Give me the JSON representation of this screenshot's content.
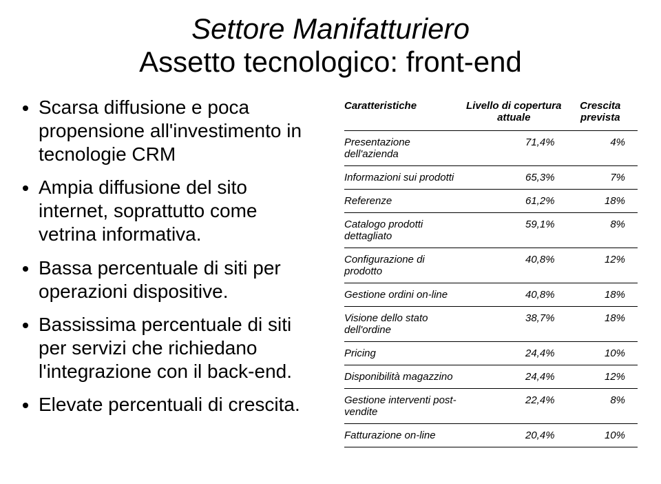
{
  "title": {
    "line1": "Settore Manifatturiero",
    "line2": "Assetto tecnologico: front-end"
  },
  "bullets": [
    "Scarsa diffusione e poca propensione all'investimento in tecnologie CRM",
    "Ampia diffusione del sito internet, soprattutto come vetrina informativa.",
    "Bassa percentuale di siti per operazioni dispositive.",
    "Bassissima percentuale di siti per servizi che richiedano l'integrazione con il back-end.",
    "Elevate percentuali di crescita."
  ],
  "table": {
    "headers": {
      "c0": "Caratteristiche",
      "c1": "Livello di copertura attuale",
      "c2": "Crescita prevista"
    },
    "rows": [
      {
        "label": "Presentazione dell'azienda",
        "v1": "71,4%",
        "v2": "4%"
      },
      {
        "label": "Informazioni sui prodotti",
        "v1": "65,3%",
        "v2": "7%"
      },
      {
        "label": "Referenze",
        "v1": "61,2%",
        "v2": "18%"
      },
      {
        "label": "Catalogo prodotti dettagliato",
        "v1": "59,1%",
        "v2": "8%"
      },
      {
        "label": "Configurazione di prodotto",
        "v1": "40,8%",
        "v2": "12%"
      },
      {
        "label": "Gestione ordini on-line",
        "v1": "40,8%",
        "v2": "18%"
      },
      {
        "label": "Visione dello stato dell'ordine",
        "v1": "38,7%",
        "v2": "18%"
      },
      {
        "label": "Pricing",
        "v1": "24,4%",
        "v2": "10%"
      },
      {
        "label": "Disponibilità magazzino",
        "v1": "24,4%",
        "v2": "12%"
      },
      {
        "label": "Gestione interventi post-vendite",
        "v1": "22,4%",
        "v2": "8%"
      },
      {
        "label": "Fatturazione on-line",
        "v1": "20,4%",
        "v2": "10%"
      }
    ]
  }
}
